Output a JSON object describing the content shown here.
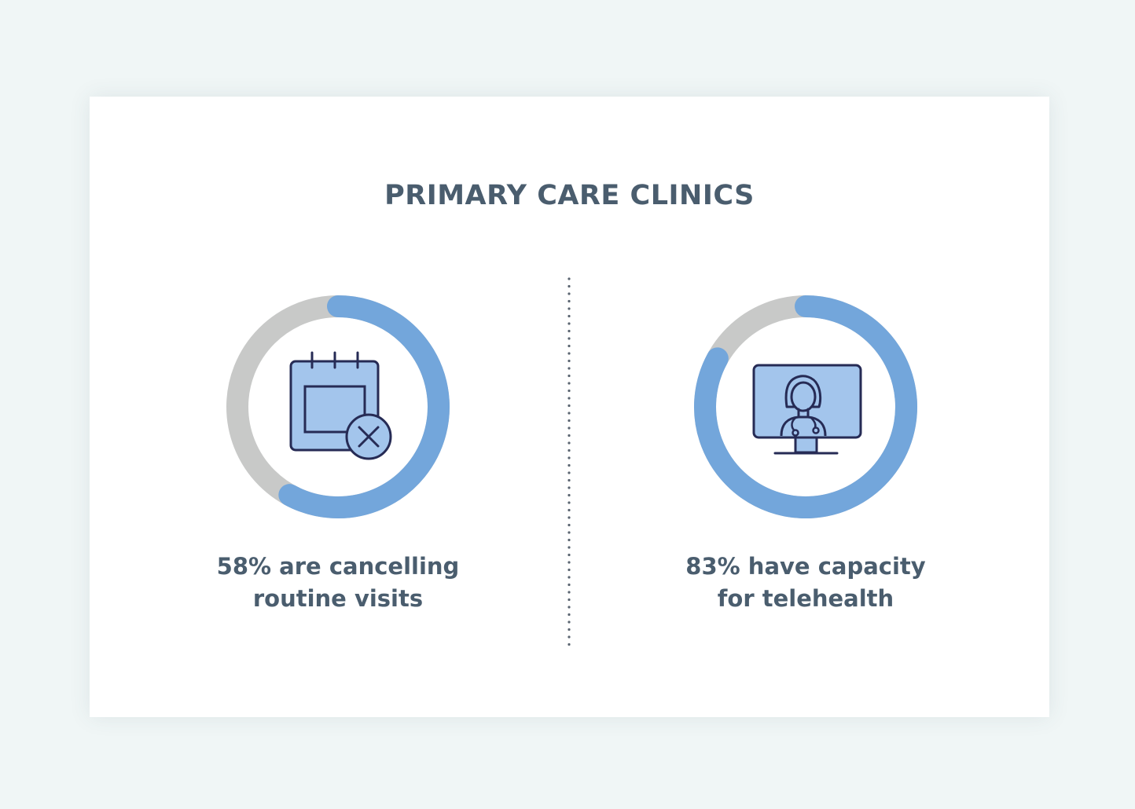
{
  "title": "PRIMARY CARE CLINICS",
  "colors": {
    "accent": "#73a6db",
    "track": "#c8c9c8",
    "icon_fill": "#a3c5ec",
    "icon_stroke": "#262b55",
    "text": "#4a5d6e",
    "divider": "#5a6470"
  },
  "chart_data": [
    {
      "type": "pie",
      "values": [
        58,
        42
      ],
      "caption": [
        "58% are cancelling",
        "routine visits"
      ],
      "icon": "calendar-cancel-icon"
    },
    {
      "type": "pie",
      "values": [
        83,
        17
      ],
      "caption": [
        "83% have capacity",
        "for telehealth"
      ],
      "icon": "telehealth-doctor-monitor-icon"
    }
  ]
}
